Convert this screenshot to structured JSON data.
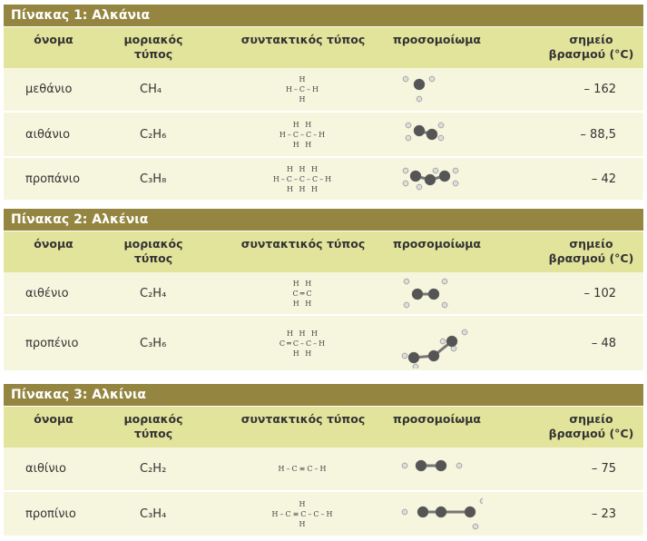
{
  "tables": [
    {
      "title": "Πίνακας 1: Αλκάνια",
      "columns": [
        "όνομα",
        "μοριακός τύπος",
        "συντακτικός τύπος",
        "προσομοίωμα",
        "σημείο βρασμού (°C)"
      ],
      "rows": [
        {
          "name": "μεθάνιο",
          "formula": "CH₄",
          "structure": [
            "H",
            "H–C–H",
            "H"
          ],
          "boiling_point": "– 162"
        },
        {
          "name": "αιθάνιο",
          "formula": "C₂H₆",
          "structure": [
            "H H",
            "H–C–C–H",
            "H H"
          ],
          "boiling_point": "– 88,5"
        },
        {
          "name": "προπάνιο",
          "formula": "C₃H₈",
          "structure": [
            "H H H",
            "H–C–C–C–H",
            "H H H"
          ],
          "boiling_point": "– 42"
        }
      ]
    },
    {
      "title": "Πίνακας 2: Αλκένια",
      "columns": [
        "όνομα",
        "μοριακός τύπος",
        "συντακτικός τύπος",
        "προσομοίωμα",
        "σημείο βρασμού (°C)"
      ],
      "rows": [
        {
          "name": "αιθένιο",
          "formula": "C₂H₄",
          "structure": [
            "H H",
            "C═C",
            "H H"
          ],
          "boiling_point": "– 102"
        },
        {
          "name": "προπένιο",
          "formula": "C₃H₆",
          "structure": [
            "H H H",
            "C═C–C–H",
            "H H"
          ],
          "boiling_point": "– 48"
        }
      ]
    },
    {
      "title": "Πίνακας 3: Αλκίνια",
      "columns": [
        "όνομα",
        "μοριακός τύπος",
        "συντακτικός τύπος",
        "προσομοίωμα",
        "σημείο βρασμού (°C)"
      ],
      "rows": [
        {
          "name": "αιθίνιο",
          "formula": "C₂H₂",
          "structure": [
            "H–C≡C–H"
          ],
          "boiling_point": "– 75"
        },
        {
          "name": "προπίνιο",
          "formula": "C₃H₄",
          "structure": [
            "H",
            "H–C≡C–C–H",
            "H"
          ],
          "boiling_point": "– 23"
        }
      ]
    }
  ]
}
